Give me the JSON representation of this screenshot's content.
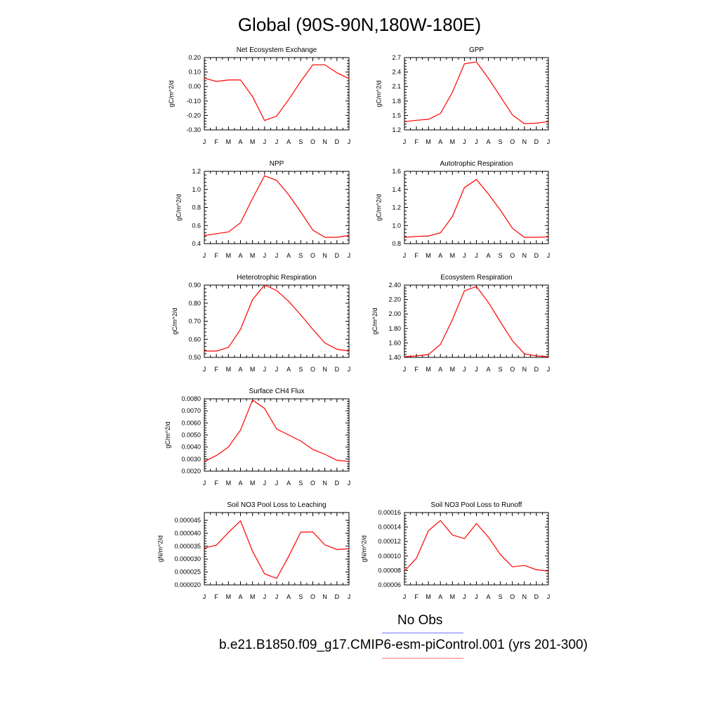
{
  "title": "Global (90S-90N,180W-180E)",
  "months": [
    "J",
    "F",
    "M",
    "A",
    "M",
    "J",
    "J",
    "A",
    "S",
    "O",
    "N",
    "D",
    "J"
  ],
  "line_color": "#ff0000",
  "legend": {
    "obs_label": "No Obs",
    "obs_color": "#7777ff",
    "case_label": "b.e21.B1850.f09_g17.CMIP6-esm-piControl.001 (yrs 201-300)",
    "case_color": "#ff7777"
  },
  "chart_data": [
    {
      "type": "line",
      "title": "Net Ecosystem Exchange",
      "ylabel": "gC/m^2/d",
      "ylim": [
        -0.3,
        0.2
      ],
      "yticks": [
        -0.3,
        -0.2,
        -0.1,
        0.0,
        0.1,
        0.2
      ],
      "ytick_labels": [
        "-0.30",
        "-0.20",
        "-0.10",
        "0.00",
        "0.10",
        "0.20"
      ],
      "values": [
        0.058,
        0.035,
        0.045,
        0.045,
        -0.07,
        -0.235,
        -0.205,
        -0.09,
        0.035,
        0.15,
        0.15,
        0.095,
        0.055
      ]
    },
    {
      "type": "line",
      "title": "GPP",
      "ylabel": "gC/m^2/d",
      "ylim": [
        1.2,
        2.7
      ],
      "yticks": [
        1.2,
        1.5,
        1.8,
        2.1,
        2.4,
        2.7
      ],
      "ytick_labels": [
        "1.2",
        "1.5",
        "1.8",
        "2.1",
        "2.4",
        "2.7"
      ],
      "values": [
        1.37,
        1.4,
        1.42,
        1.54,
        1.98,
        2.57,
        2.61,
        2.27,
        1.89,
        1.51,
        1.33,
        1.34,
        1.37
      ]
    },
    {
      "type": "line",
      "title": "NPP",
      "ylabel": "gC/m^2/d",
      "ylim": [
        0.4,
        1.2
      ],
      "yticks": [
        0.4,
        0.6,
        0.8,
        1.0,
        1.2
      ],
      "ytick_labels": [
        "0.4",
        "0.6",
        "0.8",
        "1.0",
        "1.2"
      ],
      "values": [
        0.49,
        0.51,
        0.53,
        0.63,
        0.9,
        1.15,
        1.1,
        0.94,
        0.75,
        0.55,
        0.47,
        0.47,
        0.49
      ]
    },
    {
      "type": "line",
      "title": "Autotrophic Respiration",
      "ylabel": "gC/m^2/d",
      "ylim": [
        0.8,
        1.6
      ],
      "yticks": [
        0.8,
        1.0,
        1.2,
        1.4,
        1.6
      ],
      "ytick_labels": [
        "0.8",
        "1.0",
        "1.2",
        "1.4",
        "1.6"
      ],
      "values": [
        0.87,
        0.88,
        0.885,
        0.92,
        1.1,
        1.42,
        1.51,
        1.35,
        1.17,
        0.97,
        0.87,
        0.87,
        0.875
      ]
    },
    {
      "type": "line",
      "title": "Heterotrophic Respiration",
      "ylabel": "gC/m^2/d",
      "ylim": [
        0.5,
        0.9
      ],
      "yticks": [
        0.5,
        0.6,
        0.7,
        0.8,
        0.9
      ],
      "ytick_labels": [
        "0.50",
        "0.60",
        "0.70",
        "0.80",
        "0.90"
      ],
      "values": [
        0.535,
        0.535,
        0.555,
        0.655,
        0.82,
        0.9,
        0.87,
        0.81,
        0.735,
        0.655,
        0.58,
        0.545,
        0.535
      ]
    },
    {
      "type": "line",
      "title": "Ecosystem Respiration",
      "ylabel": "gC/m^2/d",
      "ylim": [
        1.4,
        2.4
      ],
      "yticks": [
        1.4,
        1.6,
        1.8,
        2.0,
        2.2,
        2.4
      ],
      "ytick_labels": [
        "1.40",
        "1.60",
        "1.80",
        "2.00",
        "2.20",
        "2.40"
      ],
      "values": [
        1.41,
        1.42,
        1.44,
        1.58,
        1.92,
        2.32,
        2.38,
        2.16,
        1.89,
        1.63,
        1.45,
        1.42,
        1.41
      ]
    },
    {
      "type": "line",
      "title": "Surface CH4 Flux",
      "ylabel": "gC/m^2/d",
      "ylim": [
        0.002,
        0.008
      ],
      "yticks": [
        0.002,
        0.003,
        0.004,
        0.005,
        0.006,
        0.007,
        0.008
      ],
      "ytick_labels": [
        "0.0020",
        "0.0030",
        "0.0040",
        "0.0050",
        "0.0060",
        "0.0070",
        "0.0080"
      ],
      "values": [
        0.0028,
        0.0033,
        0.004,
        0.0054,
        0.0079,
        0.0072,
        0.0055,
        0.005,
        0.0045,
        0.0038,
        0.0034,
        0.0029,
        0.0028
      ]
    },
    {
      "type": "line",
      "title": "Soil NO3 Pool Loss to Leaching",
      "ylabel": "gN/m^2/d",
      "ylim": [
        2e-05,
        4.8e-05
      ],
      "yticks": [
        2e-05,
        2.5e-05,
        3e-05,
        3.5e-05,
        4e-05,
        4.5e-05
      ],
      "ytick_labels": [
        "0.000020",
        "0.000025",
        "0.000030",
        "0.000035",
        "0.000040",
        "0.000045"
      ],
      "values": [
        3.43e-05,
        3.54e-05,
        4.03e-05,
        4.48e-05,
        3.3e-05,
        2.43e-05,
        2.25e-05,
        3.11e-05,
        4.04e-05,
        4.05e-05,
        3.55e-05,
        3.37e-05,
        3.4e-05
      ]
    },
    {
      "type": "line",
      "title": "Soil NO3 Pool Loss to Runoff",
      "ylabel": "gN/m^2/d",
      "ylim": [
        6e-05,
        0.00016
      ],
      "yticks": [
        6e-05,
        8e-05,
        0.0001,
        0.00012,
        0.00014,
        0.00016
      ],
      "ytick_labels": [
        "0.00006",
        "0.00008",
        "0.00010",
        "0.00012",
        "0.00014",
        "0.00016"
      ],
      "values": [
        7.9e-05,
        9.7e-05,
        0.000135,
        0.000149,
        0.000129,
        0.000124,
        0.000145,
        0.000126,
        0.000102,
        8.5e-05,
        8.7e-05,
        8.1e-05,
        7.9e-05
      ]
    }
  ]
}
